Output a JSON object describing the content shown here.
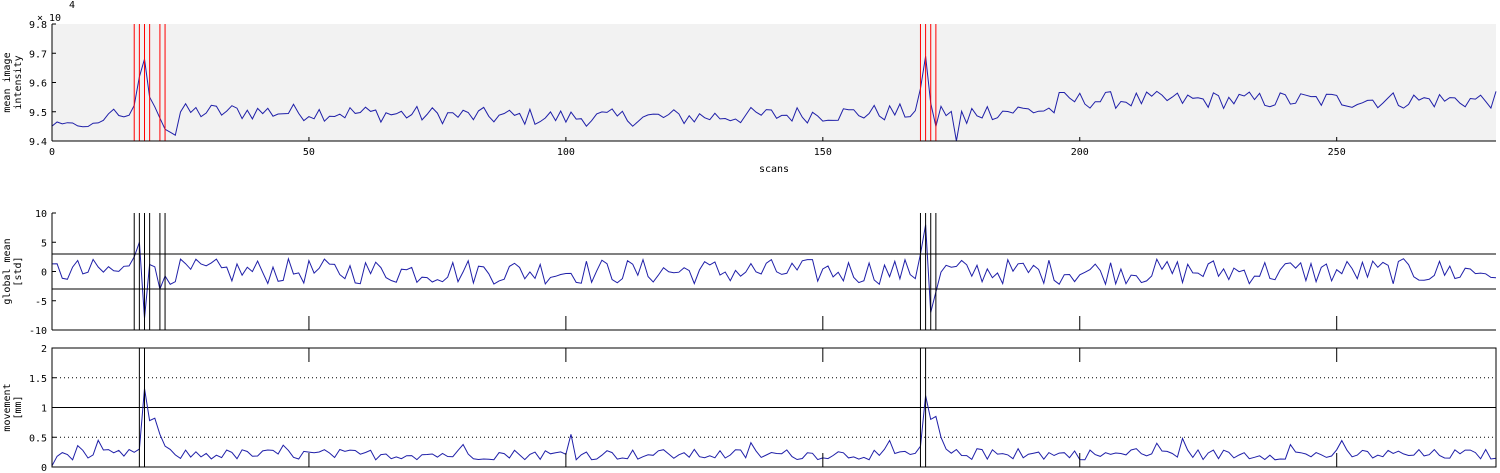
{
  "chart_data": [
    {
      "type": "line",
      "name": "mean-intensity",
      "ylabel_lines": [
        "mean image",
        "intensity"
      ],
      "xlabel": "scans",
      "exponent_label": "× 10",
      "exponent_power": "4",
      "xlim": [
        0,
        281
      ],
      "ylim": [
        9.4,
        9.8
      ],
      "xticks": [
        0,
        50,
        100,
        150,
        200,
        250
      ],
      "yticks": [
        9.4,
        9.5,
        9.6,
        9.7,
        9.8
      ],
      "ytick_labels": [
        "9.4",
        "9.5",
        "9.6",
        "9.7",
        "9.8"
      ],
      "background": "#f2f2f2",
      "series_color": "#1f1fa8",
      "marker_color": "#ff0000",
      "outlier_scans": [
        16,
        17,
        18,
        19,
        21,
        22,
        169,
        170,
        171,
        172
      ],
      "peaks": [
        [
          18,
          9.68
        ],
        [
          170,
          9.69
        ]
      ],
      "baseline_level": 9.5
    },
    {
      "type": "line",
      "name": "global-mean",
      "ylabel_lines": [
        "global mean",
        "[std]"
      ],
      "xlim": [
        0,
        281
      ],
      "ylim": [
        -10,
        10
      ],
      "yticks": [
        -10,
        -5,
        0,
        5,
        10
      ],
      "ytick_labels": [
        "-10",
        "-5",
        "0",
        "5",
        "10"
      ],
      "threshold_lines": [
        3,
        -3
      ],
      "series_color": "#1f1fa8",
      "marker_color": "#000000",
      "outlier_scans": [
        16,
        17,
        18,
        19,
        21,
        22,
        169,
        170,
        171,
        172
      ],
      "spikes": [
        [
          17,
          5
        ],
        [
          18,
          -8
        ],
        [
          21,
          -3
        ],
        [
          170,
          8
        ],
        [
          171,
          -7
        ]
      ]
    },
    {
      "type": "line",
      "name": "movement",
      "ylabel_lines": [
        "movement",
        "[mm]"
      ],
      "xlim": [
        0,
        281
      ],
      "ylim": [
        0,
        2
      ],
      "yticks": [
        0,
        0.5,
        1,
        1.5,
        2
      ],
      "ytick_labels": [
        "0",
        "0.5",
        "1",
        "1.5",
        "2"
      ],
      "solid_lines": [
        1
      ],
      "dotted_lines": [
        0.5,
        1.5
      ],
      "series_color": "#1f1fa8",
      "marker_color": "#000000",
      "outlier_scans": [
        17,
        18,
        169,
        170
      ],
      "spikes": [
        [
          18,
          1.32
        ],
        [
          170,
          1.2
        ]
      ]
    }
  ]
}
